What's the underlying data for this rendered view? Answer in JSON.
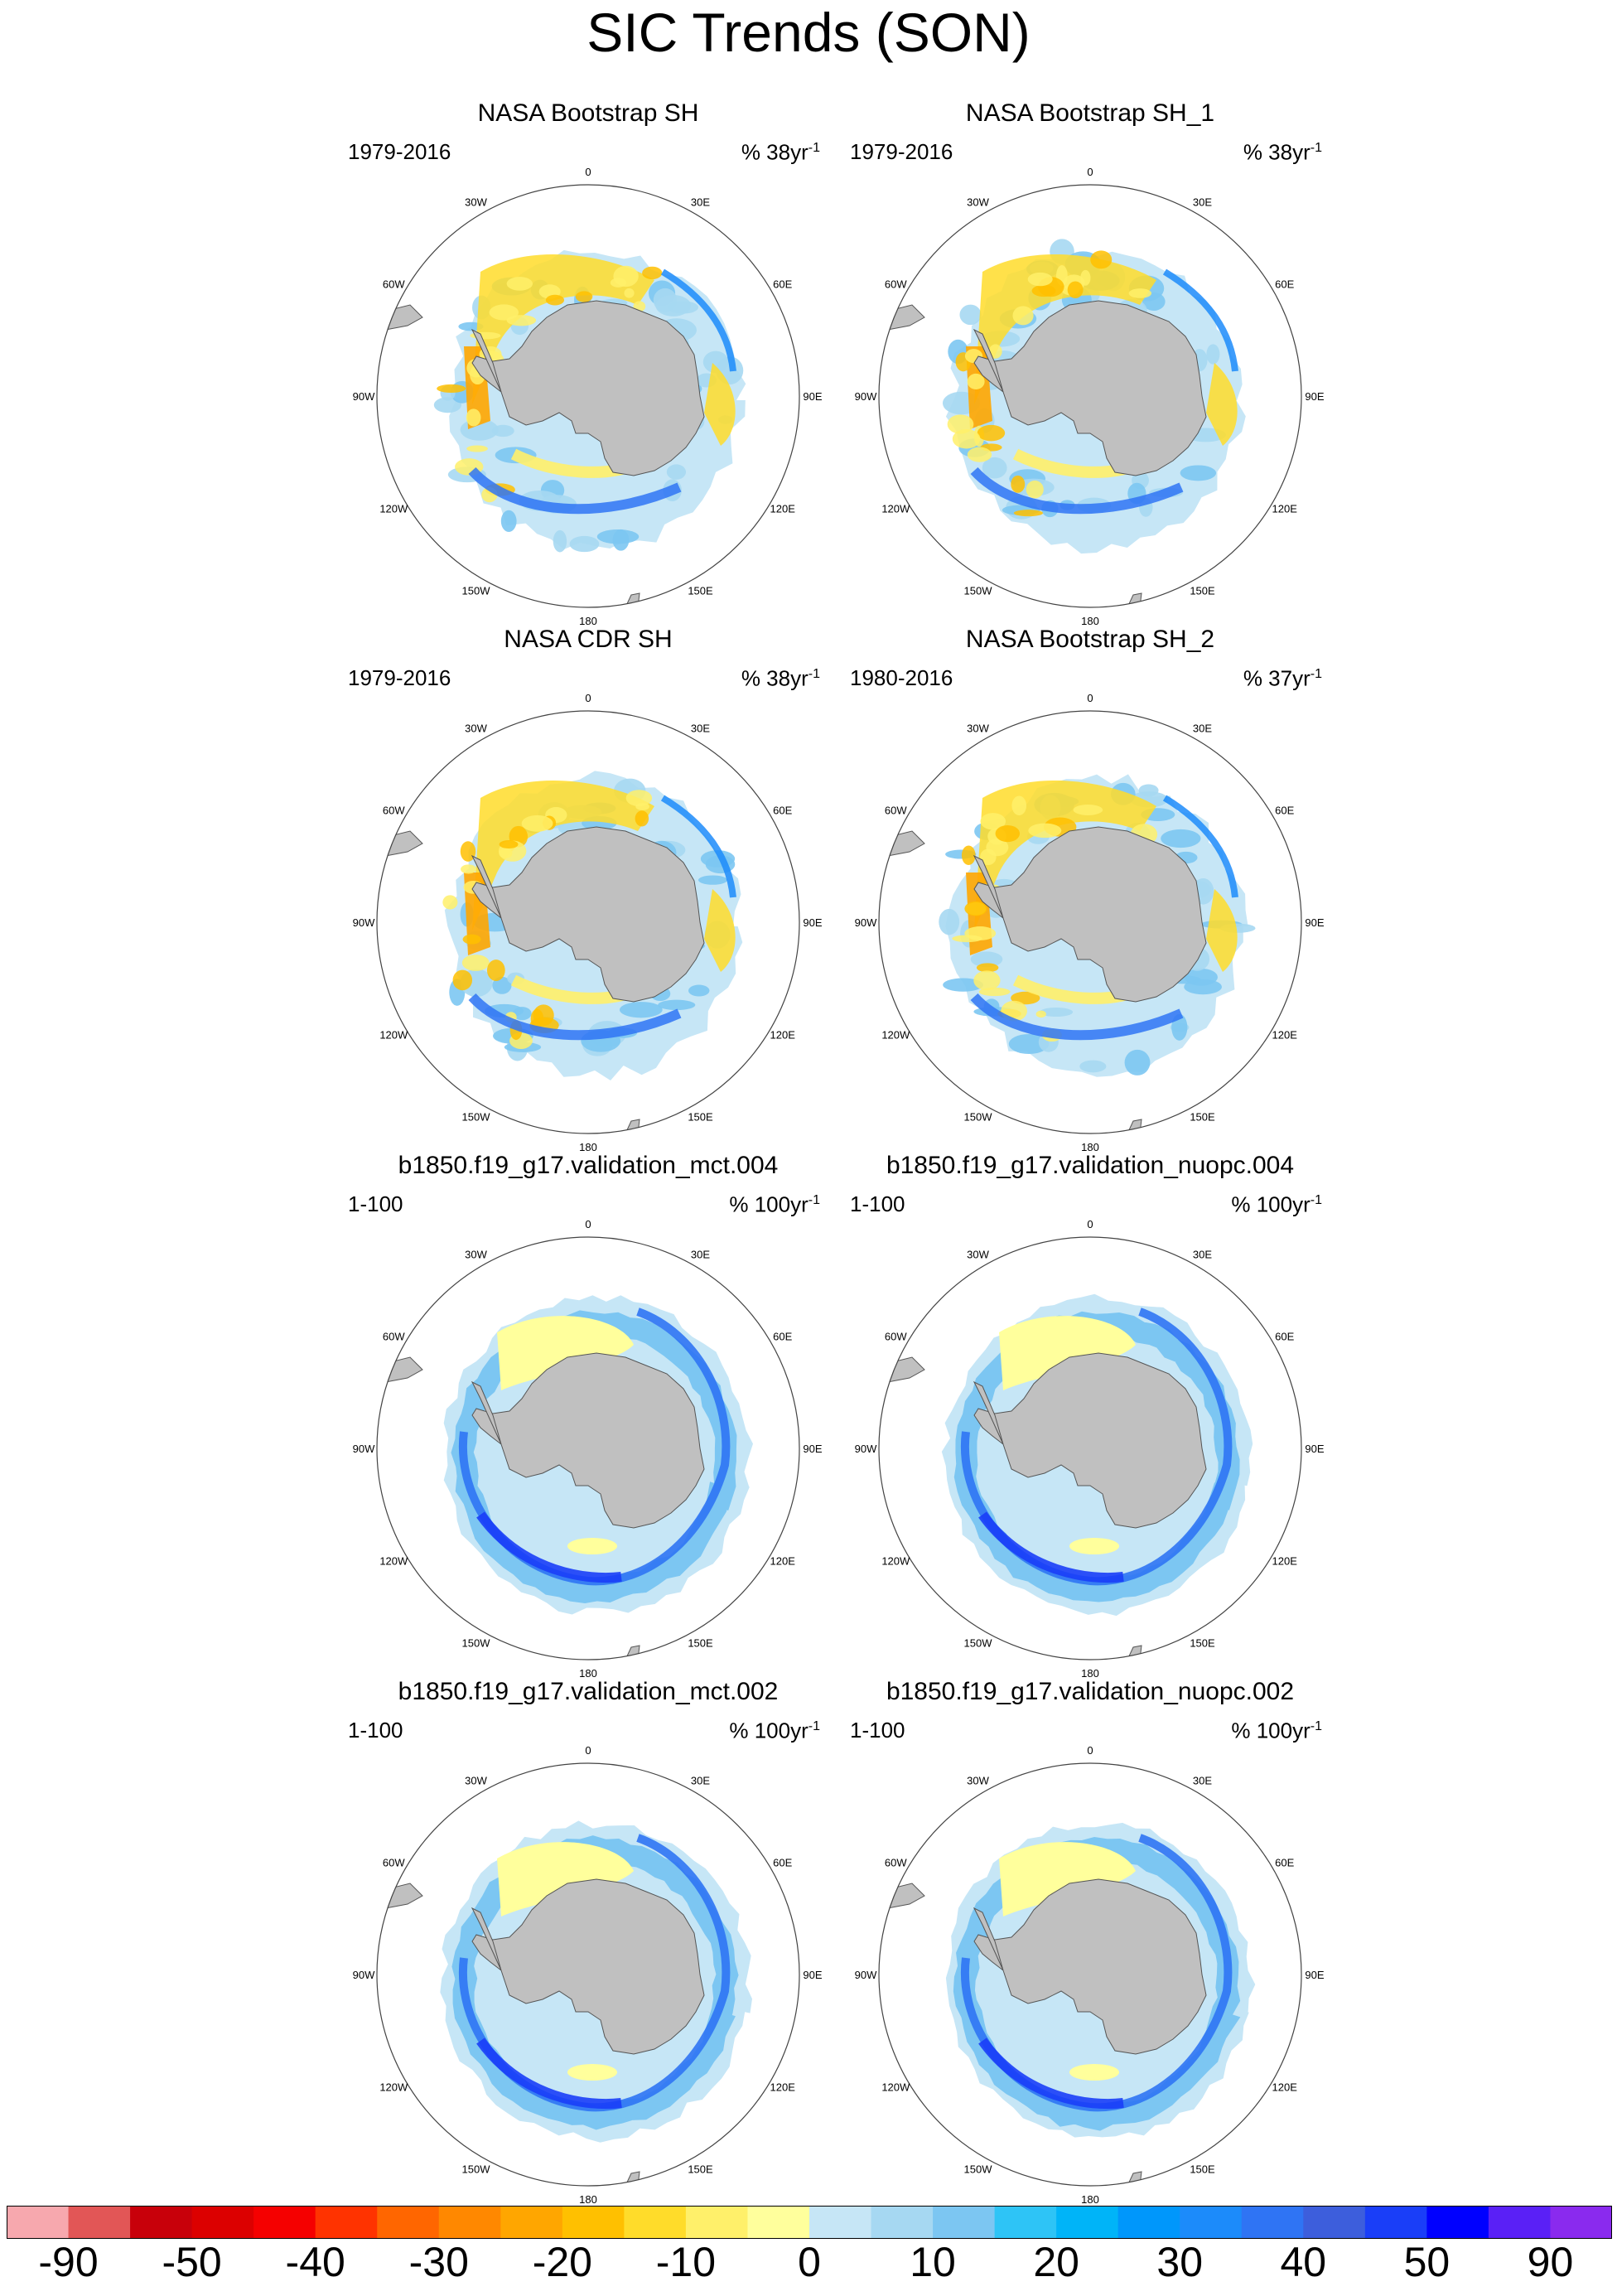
{
  "title": "SIC Trends (SON)",
  "panels": [
    {
      "title": "NASA Bootstrap SH",
      "period": "1979-2016",
      "units_prefix": "% 38yr",
      "units_exp": "-1",
      "kind": "obs"
    },
    {
      "title": "NASA Bootstrap SH_1",
      "period": "1979-2016",
      "units_prefix": "% 38yr",
      "units_exp": "-1",
      "kind": "obs"
    },
    {
      "title": "NASA CDR SH",
      "period": "1979-2016",
      "units_prefix": "% 38yr",
      "units_exp": "-1",
      "kind": "obs"
    },
    {
      "title": "NASA Bootstrap SH_2",
      "period": "1980-2016",
      "units_prefix": "% 37yr",
      "units_exp": "-1",
      "kind": "obs"
    },
    {
      "title": "b1850.f19_g17.validation_mct.004",
      "period": "1-100",
      "units_prefix": "% 100yr",
      "units_exp": "-1",
      "kind": "model"
    },
    {
      "title": "b1850.f19_g17.validation_nuopc.004",
      "period": "1-100",
      "units_prefix": "% 100yr",
      "units_exp": "-1",
      "kind": "model"
    },
    {
      "title": "b1850.f19_g17.validation_mct.002",
      "period": "1-100",
      "units_prefix": "% 100yr",
      "units_exp": "-1",
      "kind": "model"
    },
    {
      "title": "b1850.f19_g17.validation_nuopc.002",
      "period": "1-100",
      "units_prefix": "% 100yr",
      "units_exp": "-1",
      "kind": "model"
    }
  ],
  "longitude_labels": [
    "0",
    "30E",
    "60E",
    "90E",
    "120E",
    "150E",
    "180",
    "150W",
    "120W",
    "90W",
    "60W",
    "30W"
  ],
  "colorbar": {
    "colors": [
      "#f7a8ae",
      "#e25656",
      "#c8000a",
      "#dc0000",
      "#f50000",
      "#ff3300",
      "#ff6600",
      "#ff8800",
      "#ffa600",
      "#ffc000",
      "#ffdc2a",
      "#fff06a",
      "#ffff9c",
      "#c6e6f6",
      "#a6d8f2",
      "#7cc6f2",
      "#2ec4f6",
      "#00b4f8",
      "#0097fb",
      "#1c8bfa",
      "#2f74f4",
      "#3d5edc",
      "#1a3ef8",
      "#0000ff",
      "#5a20f6",
      "#8a2aee"
    ],
    "labels": [
      "-90",
      "-50",
      "-40",
      "-30",
      "-20",
      "-10",
      "0",
      "10",
      "20",
      "30",
      "40",
      "50",
      "90"
    ]
  }
}
